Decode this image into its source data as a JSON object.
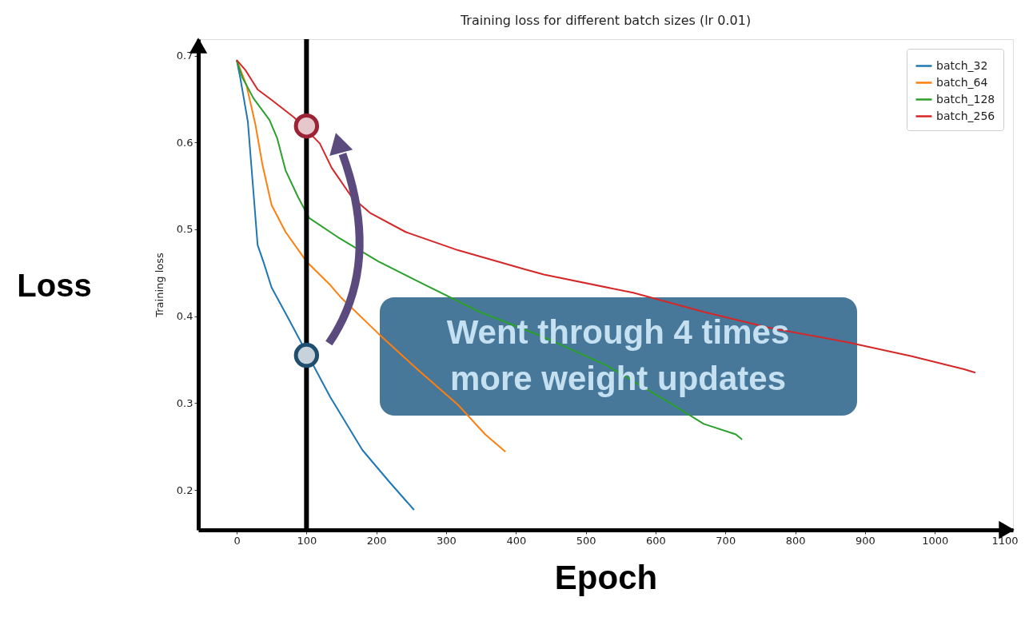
{
  "chart_data": {
    "type": "line",
    "title": "Training loss for different batch sizes (lr 0.01)",
    "xlabel": "Epoch",
    "ylabel": "Training loss",
    "xlim": [
      -55,
      1112
    ],
    "ylim": [
      0.154,
      0.719
    ],
    "xticks": [
      0,
      100,
      200,
      300,
      400,
      500,
      600,
      700,
      800,
      900,
      1000,
      1100
    ],
    "yticks": [
      0.2,
      0.3,
      0.4,
      0.5,
      0.6,
      0.7
    ],
    "grid": false,
    "legend": "top right",
    "line_style": "solid",
    "ref_lines": [
      {
        "axis": "x",
        "value": 100,
        "color": "#000000"
      }
    ],
    "annotations": [
      "Loss",
      "Went through 4 times more weight updates"
    ],
    "series": [
      {
        "name": "batch_32",
        "color": "#1f77b4",
        "x": [
          0,
          5,
          10,
          16,
          24,
          30,
          39,
          50,
          73,
          134,
          180,
          219,
          254
        ],
        "values": [
          0.695,
          0.675,
          0.652,
          0.624,
          0.543,
          0.482,
          0.461,
          0.433,
          0.399,
          0.307,
          0.246,
          0.209,
          0.177
        ]
      },
      {
        "name": "batch_64",
        "color": "#ff7f0e",
        "x": [
          0,
          14,
          27,
          37,
          50,
          70,
          100,
          134,
          150,
          203,
          260,
          317,
          356,
          385
        ],
        "values": [
          0.695,
          0.666,
          0.62,
          0.574,
          0.528,
          0.497,
          0.463,
          0.436,
          0.421,
          0.38,
          0.338,
          0.298,
          0.264,
          0.244
        ]
      },
      {
        "name": "batch_128",
        "color": "#2ca02c",
        "x": [
          0,
          8,
          24,
          47,
          58,
          70,
          88,
          104,
          145,
          203,
          265,
          348,
          440,
          531,
          623,
          669,
          715,
          724
        ],
        "values": [
          0.695,
          0.675,
          0.651,
          0.626,
          0.605,
          0.568,
          0.537,
          0.513,
          0.491,
          0.463,
          0.438,
          0.405,
          0.376,
          0.343,
          0.299,
          0.276,
          0.264,
          0.258
        ]
      },
      {
        "name": "batch_256",
        "color": "#d62728",
        "x": [
          0,
          12,
          30,
          50,
          82,
          119,
          136,
          165,
          191,
          242,
          317,
          413,
          440,
          568,
          669,
          761,
          875,
          967,
          1042,
          1058
        ],
        "values": [
          0.695,
          0.684,
          0.661,
          0.649,
          0.629,
          0.599,
          0.571,
          0.537,
          0.519,
          0.497,
          0.476,
          0.454,
          0.448,
          0.427,
          0.405,
          0.387,
          0.37,
          0.354,
          0.339,
          0.335
        ]
      },
      {
        "type": "scatter",
        "color": "#1f4e6e",
        "x": [
          100
        ],
        "values": [
          0.355
        ]
      },
      {
        "type": "scatter",
        "color": "#9b2335",
        "x": [
          100
        ],
        "values": [
          0.619
        ]
      }
    ]
  }
}
